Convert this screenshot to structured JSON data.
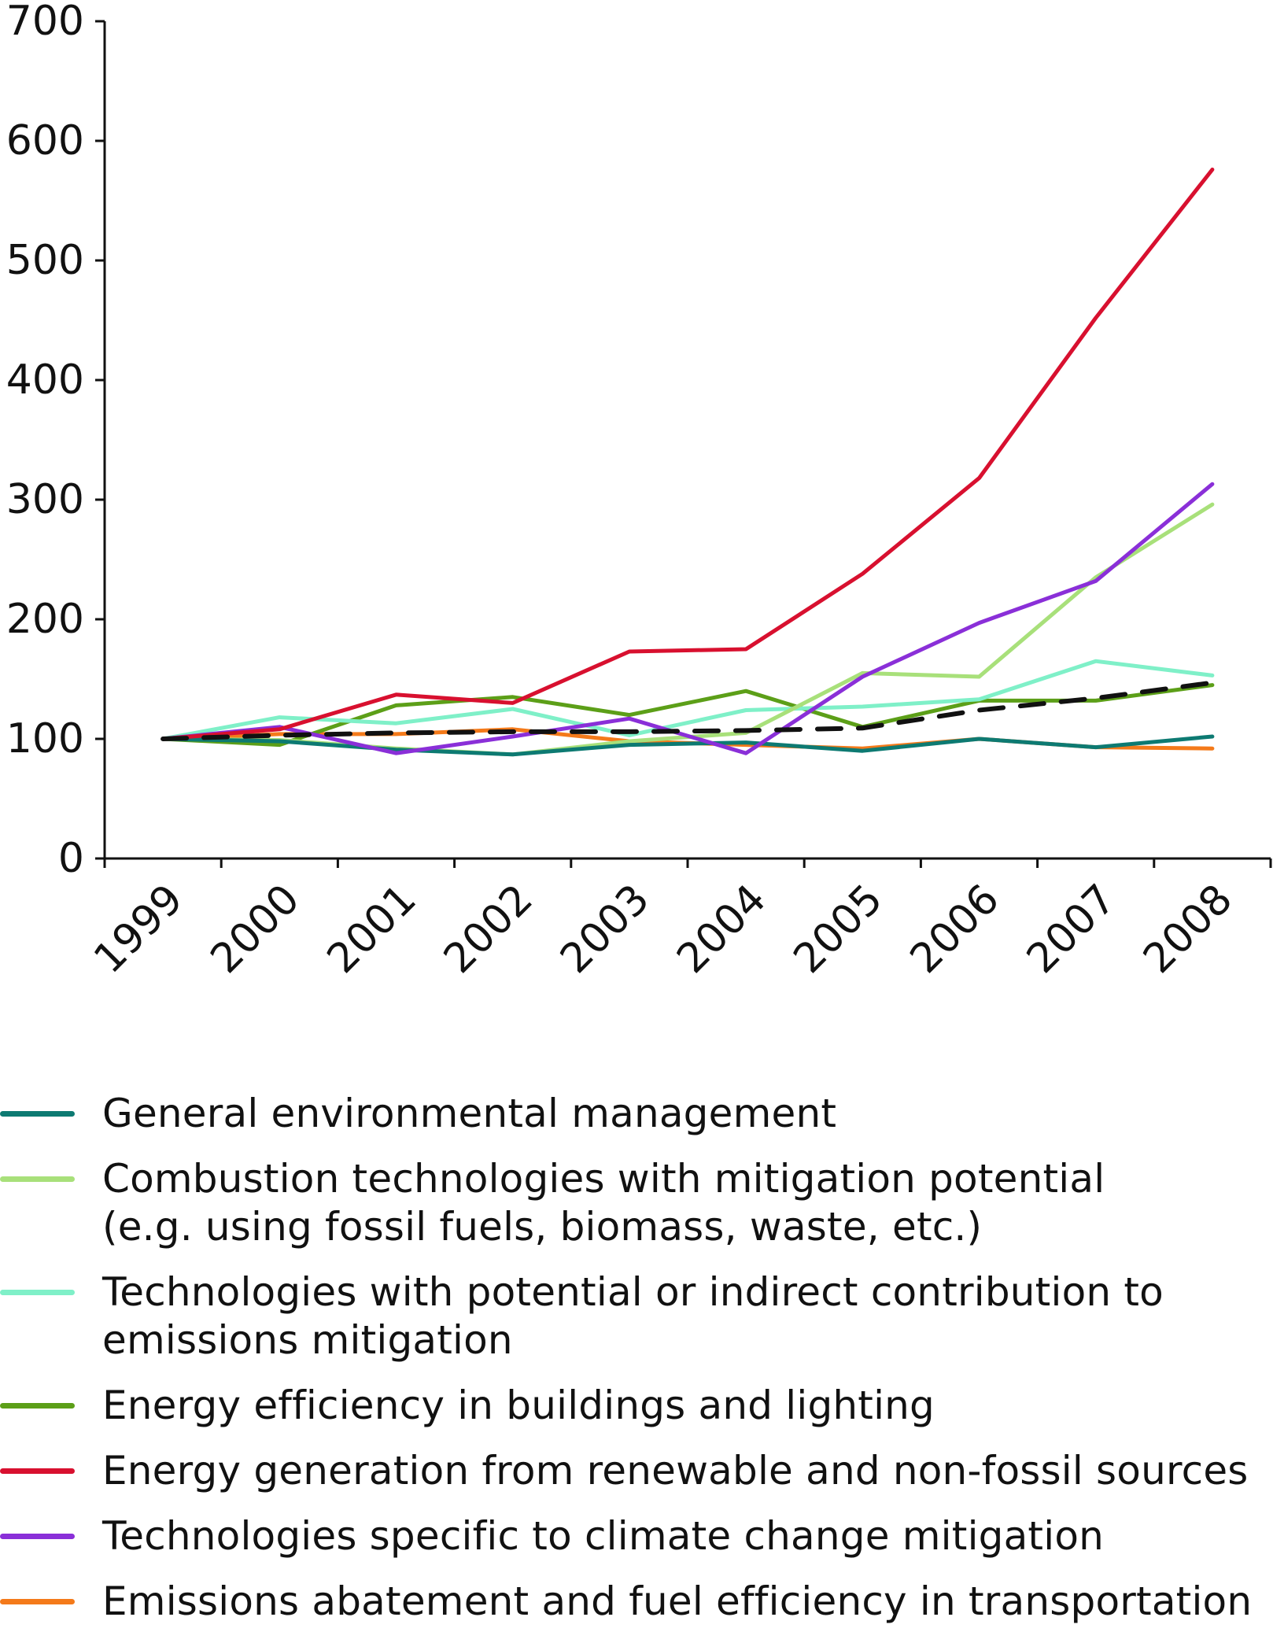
{
  "chart_data": {
    "type": "line",
    "title": "",
    "xlabel": "",
    "ylabel": "",
    "categories": [
      "1999",
      "2000",
      "2001",
      "2002",
      "2003",
      "2004",
      "2005",
      "2006",
      "2007",
      "2008"
    ],
    "ylim": [
      0,
      700
    ],
    "y_ticks": [
      "0",
      "100",
      "200",
      "300",
      "400",
      "500",
      "600",
      "700"
    ],
    "grid": false,
    "legend_position": "bottom",
    "series": [
      {
        "name": "General environmental management",
        "color": "#0d7a72",
        "dash": false,
        "values": [
          100,
          98,
          91,
          87,
          95,
          97,
          90,
          100,
          93,
          102
        ]
      },
      {
        "name": "Combustion technologies with mitigation potential\n(e.g. using fossil fuels, biomass, waste, etc.)",
        "color": "#a8e07a",
        "dash": false,
        "values": [
          100,
          99,
          92,
          87,
          98,
          105,
          155,
          152,
          235,
          296
        ]
      },
      {
        "name": "Technologies with potential or indirect contribution to\nemissions mitigation",
        "color": "#7ff0c8",
        "dash": false,
        "values": [
          100,
          118,
          113,
          125,
          103,
          124,
          127,
          133,
          165,
          153
        ]
      },
      {
        "name": "Energy efficiency in buildings and lighting",
        "color": "#5c9f18",
        "dash": false,
        "values": [
          100,
          95,
          128,
          135,
          120,
          140,
          110,
          132,
          132,
          145
        ]
      },
      {
        "name": "Energy generation from renewable and non-fossil sources",
        "color": "#d8102f",
        "dash": false,
        "values": [
          100,
          108,
          137,
          130,
          173,
          175,
          238,
          318,
          452,
          576
        ]
      },
      {
        "name": "Technologies specific to climate change mitigation",
        "color": "#8a2fd8",
        "dash": false,
        "values": [
          100,
          110,
          88,
          102,
          117,
          88,
          152,
          197,
          232,
          313
        ]
      },
      {
        "name": "Emissions abatement and fuel efficiency in transportation",
        "color": "#f47a1a",
        "dash": false,
        "values": [
          100,
          104,
          104,
          108,
          98,
          95,
          92,
          100,
          93,
          92
        ]
      },
      {
        "name": "",
        "color": "#111111",
        "dash": true,
        "values": [
          100,
          103,
          105,
          106,
          106,
          107,
          109,
          124,
          134,
          147
        ]
      }
    ]
  }
}
